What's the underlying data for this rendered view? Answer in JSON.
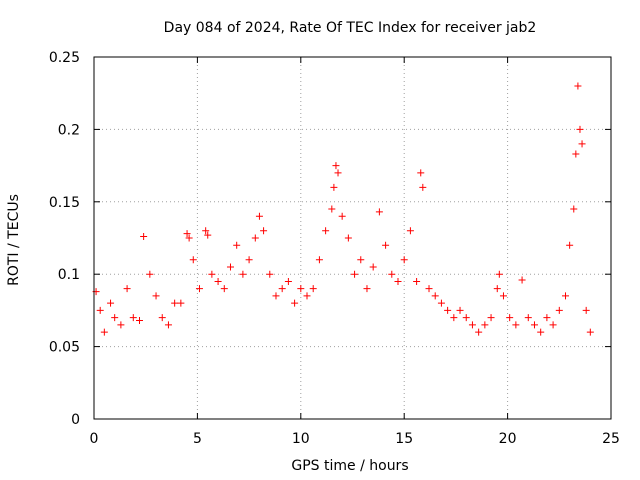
{
  "chart_data": {
    "type": "scatter",
    "title": "Day 084 of 2024, Rate Of TEC Index for receiver jab2",
    "xlabel": "GPS time / hours",
    "ylabel": "ROTI / TECUs",
    "xlim": [
      0,
      25
    ],
    "ylim": [
      0,
      0.25
    ],
    "xticks": [
      "0",
      "5",
      "10",
      "15",
      "20",
      "25"
    ],
    "yticks": [
      "0",
      "0.05",
      "0.1",
      "0.15",
      "0.2",
      "0.25"
    ],
    "grid": true,
    "marker": "+",
    "color": "#ff0000",
    "series": [
      {
        "name": "ROTI",
        "x": [
          0.1,
          0.3,
          0.5,
          0.8,
          1.0,
          1.3,
          1.6,
          1.9,
          2.2,
          2.4,
          2.7,
          3.0,
          3.3,
          3.6,
          3.9,
          4.2,
          4.5,
          4.6,
          4.8,
          5.1,
          5.4,
          5.5,
          5.7,
          6.0,
          6.3,
          6.6,
          6.9,
          7.2,
          7.5,
          7.8,
          8.0,
          8.2,
          8.5,
          8.8,
          9.1,
          9.4,
          9.7,
          10.0,
          10.3,
          10.6,
          10.9,
          11.2,
          11.5,
          11.6,
          11.7,
          11.8,
          12.0,
          12.3,
          12.6,
          12.9,
          13.2,
          13.5,
          13.8,
          14.1,
          14.4,
          14.7,
          15.0,
          15.3,
          15.6,
          15.8,
          15.9,
          16.2,
          16.5,
          16.8,
          17.1,
          17.4,
          17.7,
          18.0,
          18.3,
          18.6,
          18.9,
          19.2,
          19.5,
          19.6,
          19.8,
          20.1,
          20.4,
          20.7,
          21.0,
          21.3,
          21.6,
          21.9,
          22.2,
          22.5,
          22.8,
          23.0,
          23.2,
          23.3,
          23.4,
          23.5,
          23.6,
          23.8,
          24.0
        ],
        "y": [
          0.088,
          0.075,
          0.06,
          0.08,
          0.07,
          0.065,
          0.09,
          0.07,
          0.068,
          0.126,
          0.1,
          0.085,
          0.07,
          0.065,
          0.08,
          0.08,
          0.128,
          0.125,
          0.11,
          0.09,
          0.13,
          0.127,
          0.1,
          0.095,
          0.09,
          0.105,
          0.12,
          0.1,
          0.11,
          0.125,
          0.14,
          0.13,
          0.1,
          0.085,
          0.09,
          0.095,
          0.08,
          0.09,
          0.085,
          0.09,
          0.11,
          0.13,
          0.145,
          0.16,
          0.175,
          0.17,
          0.14,
          0.125,
          0.1,
          0.11,
          0.09,
          0.105,
          0.143,
          0.12,
          0.1,
          0.095,
          0.11,
          0.13,
          0.095,
          0.17,
          0.16,
          0.09,
          0.085,
          0.08,
          0.075,
          0.07,
          0.075,
          0.07,
          0.065,
          0.06,
          0.065,
          0.07,
          0.09,
          0.1,
          0.085,
          0.07,
          0.065,
          0.096,
          0.07,
          0.065,
          0.06,
          0.07,
          0.065,
          0.075,
          0.085,
          0.12,
          0.145,
          0.183,
          0.23,
          0.2,
          0.19,
          0.075,
          0.06
        ]
      }
    ]
  }
}
